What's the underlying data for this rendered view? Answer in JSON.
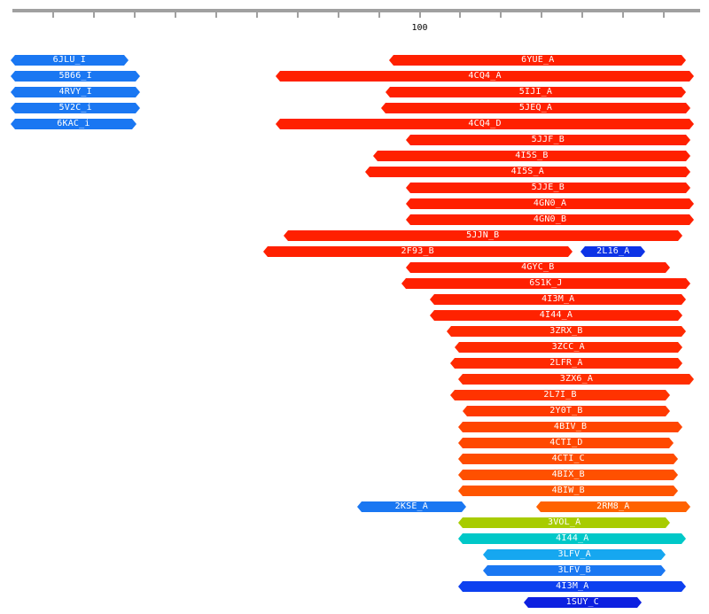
{
  "ruler": {
    "label": "100",
    "label_at": 100,
    "ticks": [
      10,
      20,
      30,
      40,
      50,
      60,
      70,
      80,
      90,
      100,
      110,
      120,
      130,
      140,
      150,
      160
    ]
  },
  "scale": {
    "start": 0,
    "end": 168
  },
  "hits": [
    {
      "id": "6JLU_I",
      "start": 0,
      "end": 28,
      "color": "#1a77f2",
      "row": 0
    },
    {
      "id": "6YUE_A",
      "start": 93,
      "end": 165,
      "color": "#ff2000",
      "row": 0
    },
    {
      "id": "5B66_I",
      "start": 0,
      "end": 31,
      "color": "#1a77f2",
      "row": 1
    },
    {
      "id": "4CQ4_A",
      "start": 65,
      "end": 167,
      "color": "#ff2000",
      "row": 1
    },
    {
      "id": "4RVY_I",
      "start": 0,
      "end": 31,
      "color": "#1a77f2",
      "row": 2
    },
    {
      "id": "5IJI_A",
      "start": 92,
      "end": 165,
      "color": "#ff2000",
      "row": 2
    },
    {
      "id": "5V2C_i",
      "start": 0,
      "end": 31,
      "color": "#1a77f2",
      "row": 3
    },
    {
      "id": "5JEQ_A",
      "start": 91,
      "end": 166,
      "color": "#ff2000",
      "row": 3
    },
    {
      "id": "6KAC_i",
      "start": 0,
      "end": 30,
      "color": "#1a77f2",
      "row": 4
    },
    {
      "id": "4CQ4_D",
      "start": 65,
      "end": 167,
      "color": "#ff2000",
      "row": 4
    },
    {
      "id": "5JJF_B",
      "start": 97,
      "end": 166,
      "color": "#ff2000",
      "row": 5
    },
    {
      "id": "4I5S_B",
      "start": 89,
      "end": 166,
      "color": "#ff2000",
      "row": 6
    },
    {
      "id": "4I5S_A",
      "start": 87,
      "end": 166,
      "color": "#ff2000",
      "row": 7
    },
    {
      "id": "5JJE_B",
      "start": 97,
      "end": 166,
      "color": "#ff2000",
      "row": 8
    },
    {
      "id": "4GN0_A",
      "start": 97,
      "end": 167,
      "color": "#ff2000",
      "row": 9
    },
    {
      "id": "4GN0_B",
      "start": 97,
      "end": 167,
      "color": "#ff2000",
      "row": 10
    },
    {
      "id": "5JJN_B",
      "start": 67,
      "end": 164,
      "color": "#ff2000",
      "row": 11
    },
    {
      "id": "2F93_B",
      "start": 62,
      "end": 137,
      "color": "#ff2000",
      "row": 12
    },
    {
      "id": "2L16_A",
      "start": 140,
      "end": 155,
      "color": "#0d33e6",
      "row": 12
    },
    {
      "id": "4GYC_B",
      "start": 97,
      "end": 161,
      "color": "#ff2000",
      "row": 13
    },
    {
      "id": "6S1K_J",
      "start": 96,
      "end": 166,
      "color": "#ff2000",
      "row": 14
    },
    {
      "id": "4I3M_A",
      "start": 103,
      "end": 165,
      "color": "#ff2200",
      "row": 15
    },
    {
      "id": "4I44_A",
      "start": 103,
      "end": 164,
      "color": "#ff2200",
      "row": 16
    },
    {
      "id": "3ZRX_B",
      "start": 107,
      "end": 165,
      "color": "#ff2a00",
      "row": 17
    },
    {
      "id": "3ZCC_A",
      "start": 109,
      "end": 164,
      "color": "#ff2a00",
      "row": 18
    },
    {
      "id": "2LFR_A",
      "start": 108,
      "end": 164,
      "color": "#ff2a00",
      "row": 19
    },
    {
      "id": "3ZX6_A",
      "start": 110,
      "end": 167,
      "color": "#ff2e00",
      "row": 20
    },
    {
      "id": "2L7I_B",
      "start": 108,
      "end": 161,
      "color": "#ff3300",
      "row": 21
    },
    {
      "id": "2Y0T_B",
      "start": 111,
      "end": 161,
      "color": "#ff3a00",
      "row": 22
    },
    {
      "id": "4BIV_B",
      "start": 110,
      "end": 164,
      "color": "#ff4500",
      "row": 23
    },
    {
      "id": "4CTI_D",
      "start": 110,
      "end": 162,
      "color": "#ff4800",
      "row": 24
    },
    {
      "id": "4CTI_C",
      "start": 110,
      "end": 163,
      "color": "#ff4c00",
      "row": 25
    },
    {
      "id": "4BIX_B",
      "start": 110,
      "end": 163,
      "color": "#ff5000",
      "row": 26
    },
    {
      "id": "4BIW_B",
      "start": 110,
      "end": 163,
      "color": "#ff5500",
      "row": 27
    },
    {
      "id": "2KSE_A",
      "start": 85,
      "end": 111,
      "color": "#1a77f2",
      "row": 28
    },
    {
      "id": "2RM8_A",
      "start": 129,
      "end": 166,
      "color": "#ff6200",
      "row": 28
    },
    {
      "id": "3VOL_A",
      "start": 110,
      "end": 161,
      "color": "#a8cc00",
      "row": 29
    },
    {
      "id": "4I44_A",
      "start": 110,
      "end": 165,
      "color": "#00c8c8",
      "row": 30
    },
    {
      "id": "3LFV_A",
      "start": 116,
      "end": 160,
      "color": "#16a7f0",
      "row": 31
    },
    {
      "id": "3LFV_B",
      "start": 116,
      "end": 160,
      "color": "#1a77f2",
      "row": 32
    },
    {
      "id": "4I3M_A",
      "start": 110,
      "end": 165,
      "color": "#0d40f0",
      "row": 33
    },
    {
      "id": "1SUY_C",
      "start": 126,
      "end": 154,
      "color": "#0d20e0",
      "row": 34
    }
  ]
}
